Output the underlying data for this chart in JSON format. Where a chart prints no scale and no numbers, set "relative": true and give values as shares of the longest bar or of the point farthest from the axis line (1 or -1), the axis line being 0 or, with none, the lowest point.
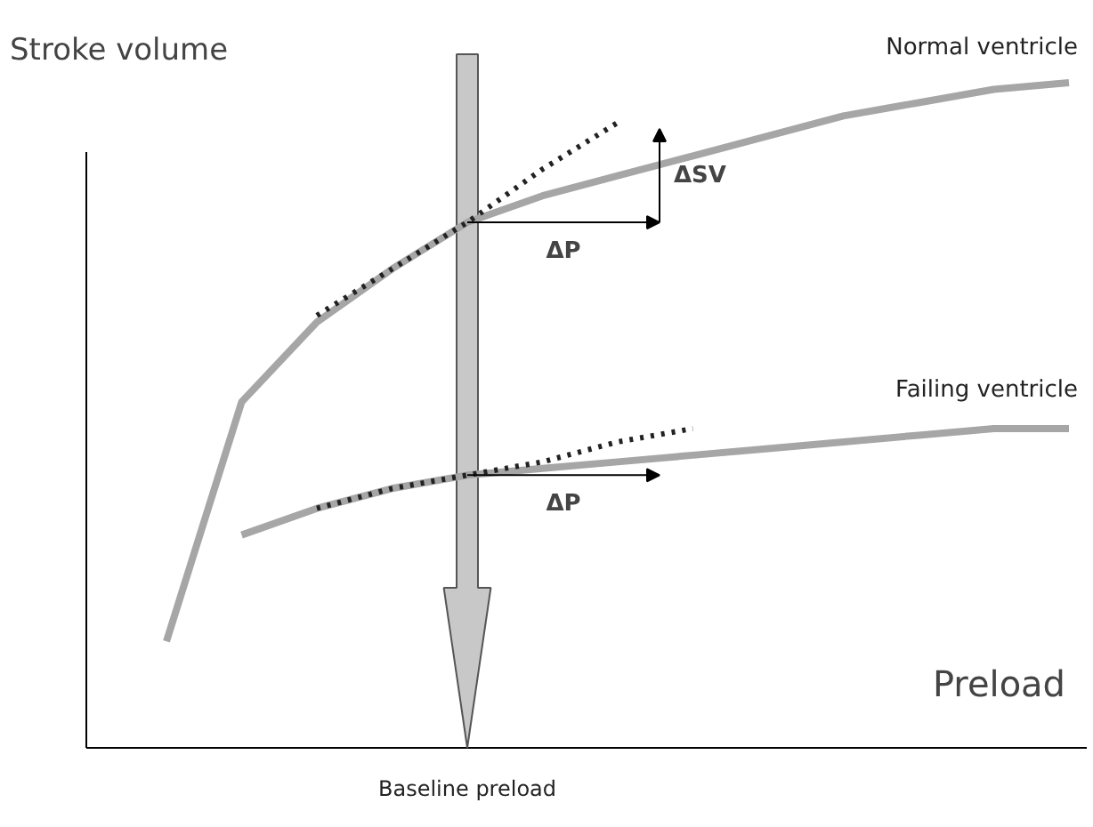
{
  "chart_data": {
    "type": "line",
    "relative": true,
    "xlabel": "Preload",
    "ylabel": "Stroke volume",
    "categories": [
      null,
      null,
      null,
      null,
      null,
      null,
      null,
      null,
      null,
      null,
      null,
      null,
      null
    ],
    "series": [
      {
        "name": "Normal ventricle",
        "color": "#a6a6a6",
        "values": [
          0.16,
          0.52,
          0.64,
          0.72,
          0.79,
          0.83,
          0.86,
          0.89,
          0.92,
          0.95,
          0.97,
          0.99,
          1.0
        ]
      },
      {
        "name": "Failing ventricle",
        "color": "#a6a6a6",
        "values": [
          null,
          0.32,
          0.36,
          0.39,
          0.41,
          0.42,
          0.43,
          0.44,
          0.45,
          0.46,
          0.47,
          0.48,
          0.48
        ]
      },
      {
        "type": "line",
        "line_style": "dotted",
        "color": "#222222",
        "values": [
          null,
          null,
          0.65,
          0.72,
          0.79,
          0.87,
          0.94,
          null,
          null,
          null,
          null,
          null,
          null
        ]
      },
      {
        "type": "line",
        "line_style": "dotted",
        "color": "#222222",
        "values": [
          null,
          null,
          0.36,
          0.39,
          0.41,
          0.43,
          0.46,
          0.48,
          null,
          null,
          null,
          null,
          null
        ]
      }
    ],
    "annotations": [
      "ΔSV",
      "ΔP",
      "ΔP",
      "Baseline preload"
    ],
    "grid": false,
    "marker": "none",
    "line_style": "solid"
  }
}
